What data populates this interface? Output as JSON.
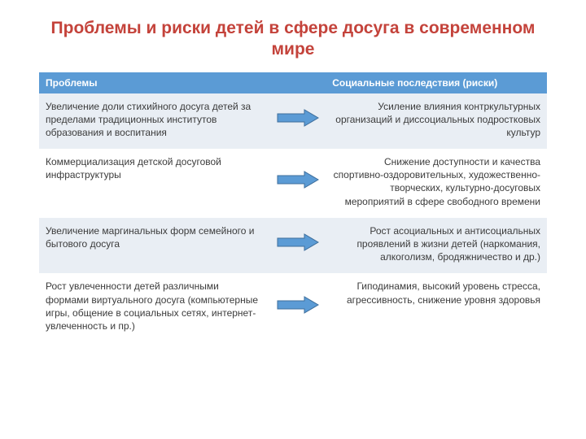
{
  "title": {
    "text": "Проблемы и риски  детей в сфере досуга в современном мире",
    "color": "#c4433b",
    "fontsize": 21
  },
  "table": {
    "header_bg": "#5b9bd5",
    "header_fg": "#ffffff",
    "row_alt_bg": "#e9eef4",
    "row_bg": "#ffffff",
    "text_color": "#3b3b3b",
    "arrow": {
      "fill": "#5b9bd5",
      "stroke": "#3f6f9c",
      "width": 52,
      "height": 22
    },
    "columns": {
      "left": "Проблемы",
      "right": "Социальные последствия (риски)"
    },
    "rows": [
      {
        "left": "Увеличение доли стихийного досуга детей за пределами традиционных институтов образования и воспитания",
        "right": "Усиление влияния контркультурных организаций и диссоциальных подростковых культур"
      },
      {
        "left": "Коммерциализация детской досуговой инфраструктуры",
        "right": "Снижение доступности и качества спортивно-оздоровительных, художественно-творческих, культурно-досуговых  мероприятий в сфере свободного времени"
      },
      {
        "left": "Увеличение маргинальных форм семейного и бытового досуга",
        "right": "Рост асоциальных и антисоциальных проявлений в жизни детей (наркомания, алкоголизм, бродяжничество и др.)"
      },
      {
        "left": "Рост увлеченности детей различными формами виртуального досуга (компьютерные игры, общение в социальных сетях, интернет-увлеченность и пр.)",
        "right": "Гиподинамия, высокий уровень стресса, агрессивность, снижение уровня здоровья"
      }
    ]
  }
}
